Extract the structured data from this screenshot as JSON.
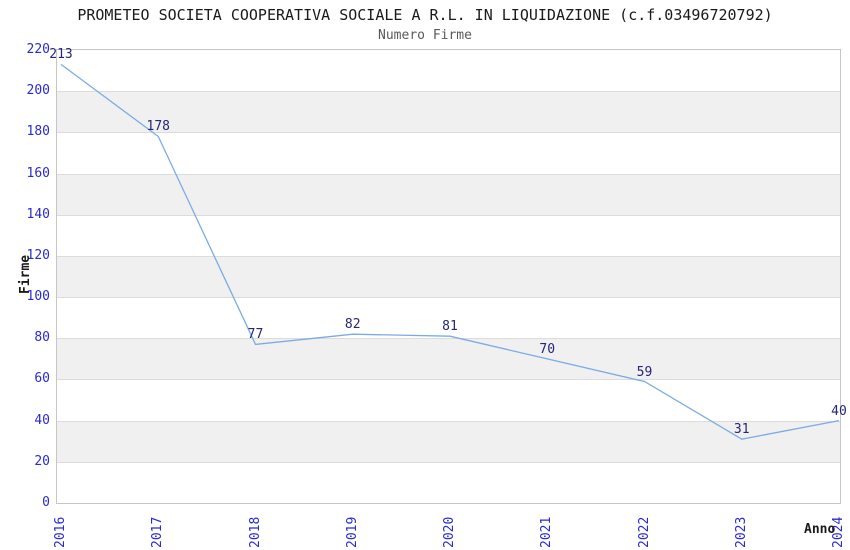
{
  "chart": {
    "title": "PROMETEO SOCIETA COOPERATIVA SOCIALE A R.L. IN LIQUIDAZIONE (c.f.03496720792)",
    "subtitle": "Numero Firme",
    "xlabel": "Anno",
    "ylabel": "Firme"
  },
  "chart_data": {
    "type": "line",
    "categories": [
      "2016",
      "2017",
      "2018",
      "2019",
      "2020",
      "2021",
      "2022",
      "2023",
      "2024"
    ],
    "values": [
      213,
      178,
      77,
      82,
      81,
      70,
      59,
      31,
      40
    ],
    "title": "PROMETEO SOCIETA COOPERATIVA SOCIALE A R.L. IN LIQUIDAZIONE (c.f.03496720792)",
    "subtitle": "Numero Firme",
    "xlabel": "Anno",
    "ylabel": "Firme",
    "ylim": [
      0,
      220
    ],
    "ytick_step": 20,
    "grid": true,
    "legend": false,
    "point_labels_visible": true
  },
  "colors": {
    "line": "#7aace3",
    "tick_label": "#2a2ad0",
    "value_label": "#262673",
    "band": "#f0f0f0",
    "gridline": "#dcdcdc",
    "border": "#c6c6c6",
    "title": "#1a1a1a",
    "subtitle": "#5a5a5a"
  }
}
